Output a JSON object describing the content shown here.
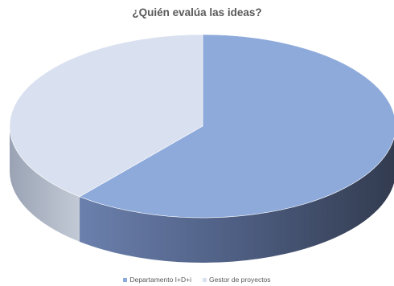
{
  "chart_data": {
    "type": "pie",
    "title": "¿Quién evalúa las ideas?",
    "categories": [
      "Departamento I+D+i",
      "Gestor de proyectos"
    ],
    "values": [
      61,
      39
    ],
    "colors": [
      "#8eaadb",
      "#d9e0ef"
    ],
    "legend_position": "bottom",
    "style": "3d"
  }
}
